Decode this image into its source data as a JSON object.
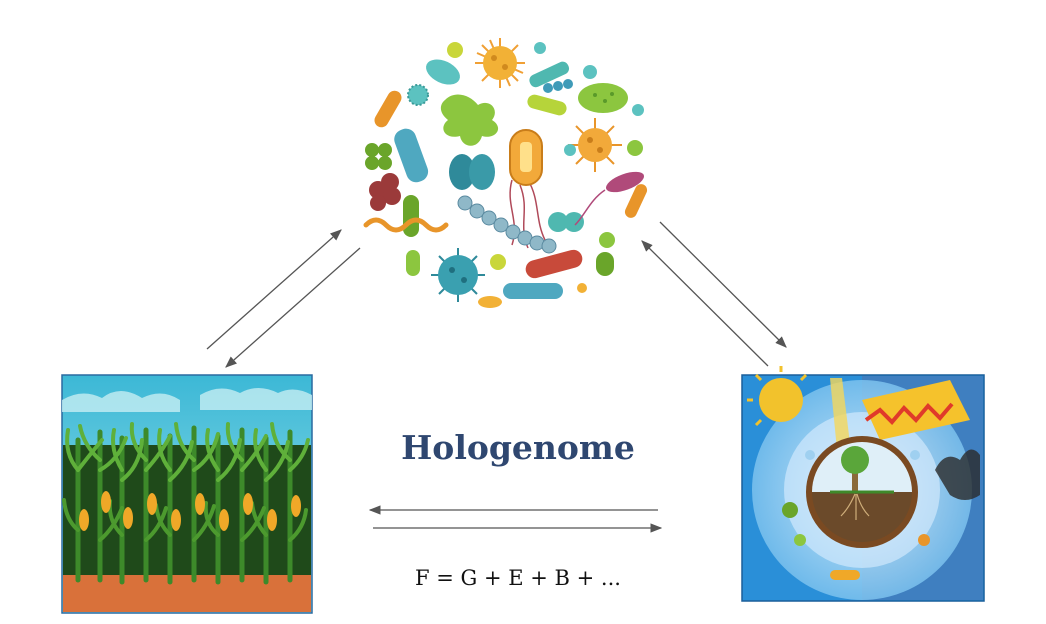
{
  "title": "Hologenome",
  "formula": "F = G + E + B + ...",
  "colors": {
    "title": "#2f4770",
    "arrow": "#555555",
    "sky": "#6fd0de",
    "soil": "#d9713a",
    "corn_leaf": "#3d8a2a",
    "corn_cob": "#f0a828",
    "env_blue": "#2a8fd8",
    "sun": "#f2c22c",
    "microbe_teal": "#4fb8b0",
    "microbe_orange": "#f0a035",
    "microbe_green": "#8cc63f",
    "microbe_red": "#9b3a3a"
  },
  "icons": {
    "top": "microbiome-cluster",
    "left": "corn-field",
    "right": "environment-globe"
  }
}
